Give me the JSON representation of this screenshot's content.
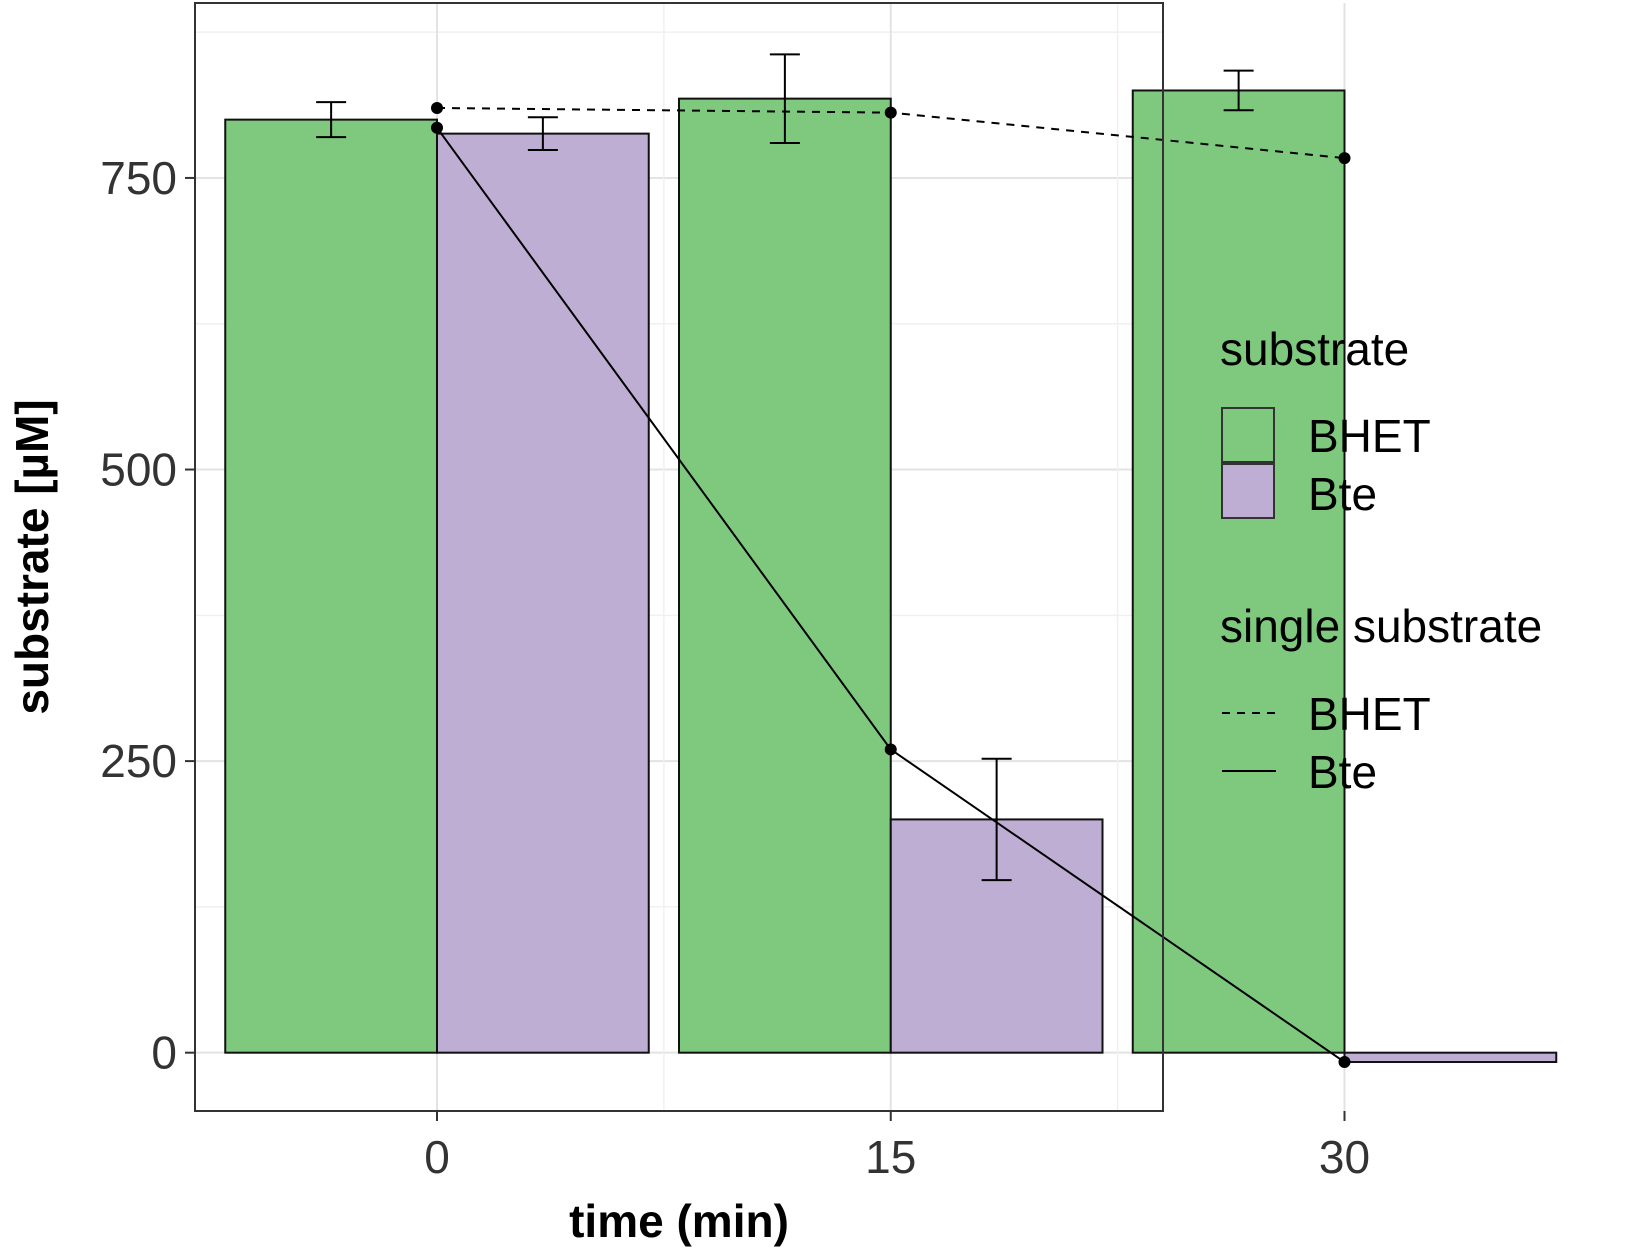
{
  "chart_data": {
    "type": "bar",
    "xlabel": "time (min)",
    "ylabel": "substrate [µM]",
    "categories": [
      "0",
      "15",
      "30"
    ],
    "ylim": [
      -50,
      900
    ],
    "xlim": [
      -8,
      24
    ],
    "yticks": [
      0,
      250,
      500,
      750
    ],
    "grid": true,
    "bar_series": [
      {
        "name": "BHET",
        "color": "#7fc97f",
        "values": [
          800,
          818,
          825
        ],
        "error": [
          15,
          38,
          17
        ]
      },
      {
        "name": "Bte",
        "color": "#beaed4",
        "values": [
          788,
          200,
          -8
        ],
        "error": [
          14,
          52,
          0
        ]
      }
    ],
    "line_series": [
      {
        "name": "BHET",
        "style": "dashed",
        "x": [
          0,
          15,
          30
        ],
        "y": [
          810,
          806,
          767
        ]
      },
      {
        "name": "Bte",
        "style": "solid",
        "x": [
          0,
          15,
          30
        ],
        "y": [
          793,
          260,
          -8
        ]
      }
    ],
    "legend": {
      "placement": "right",
      "fill_title": "substrate",
      "fill_items": [
        "BHET",
        "Bte"
      ],
      "line_title": "single substrate",
      "line_items": [
        "BHET",
        "Bte"
      ]
    }
  }
}
